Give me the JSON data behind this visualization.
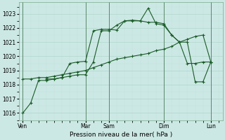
{
  "bg_color": "#cce8e4",
  "grid_color_major": "#b0d4cc",
  "grid_color_minor": "#c4e0dc",
  "line_color": "#1a5c28",
  "ylim": [
    1015.5,
    1023.8
  ],
  "yticks": [
    1016,
    1017,
    1018,
    1019,
    1020,
    1021,
    1022,
    1023
  ],
  "xlabel": "Pression niveau de la mer( hPa )",
  "day_labels": [
    "Ven",
    "Mar",
    "Sam",
    "Dim",
    "Lun"
  ],
  "day_positions": [
    0,
    8,
    11,
    18,
    24
  ],
  "xlim": [
    -0.5,
    25.5
  ],
  "series1_x": [
    0,
    1,
    2,
    3,
    4,
    5,
    6,
    7,
    8,
    9,
    10,
    11,
    12,
    13,
    14,
    15,
    16,
    17,
    18,
    19,
    20,
    21,
    22,
    23,
    24
  ],
  "series1_y": [
    1016.0,
    1016.7,
    1018.3,
    1018.3,
    1018.4,
    1018.5,
    1018.6,
    1018.7,
    1018.7,
    1019.6,
    1021.8,
    1021.8,
    1022.2,
    1022.5,
    1022.5,
    1022.5,
    1022.4,
    1022.4,
    1022.3,
    1021.5,
    1021.0,
    1019.5,
    1019.5,
    1019.6,
    1019.6
  ],
  "series2_x": [
    0,
    1,
    2,
    3,
    4,
    5,
    6,
    7,
    8,
    9,
    10,
    11,
    12,
    13,
    14,
    15,
    16,
    17,
    18,
    19,
    20,
    21,
    22,
    23,
    24
  ],
  "series2_y": [
    1018.4,
    1018.4,
    1018.5,
    1018.5,
    1018.6,
    1018.7,
    1018.8,
    1018.9,
    1019.0,
    1019.2,
    1019.4,
    1019.6,
    1019.8,
    1019.9,
    1020.0,
    1020.1,
    1020.2,
    1020.4,
    1020.5,
    1020.7,
    1021.0,
    1021.2,
    1021.4,
    1021.5,
    1019.6
  ],
  "series3_x": [
    3,
    4,
    5,
    6,
    7,
    8,
    9,
    10,
    11,
    12,
    13,
    14,
    15,
    16,
    17,
    18,
    19,
    20,
    21,
    22,
    23,
    24
  ],
  "series3_y": [
    1018.4,
    1018.4,
    1018.5,
    1019.5,
    1019.6,
    1019.65,
    1021.8,
    1021.9,
    1021.9,
    1021.85,
    1022.5,
    1022.55,
    1022.5,
    1023.4,
    1022.3,
    1022.2,
    1021.5,
    1021.0,
    1021.0,
    1018.2,
    1018.2,
    1019.6
  ]
}
